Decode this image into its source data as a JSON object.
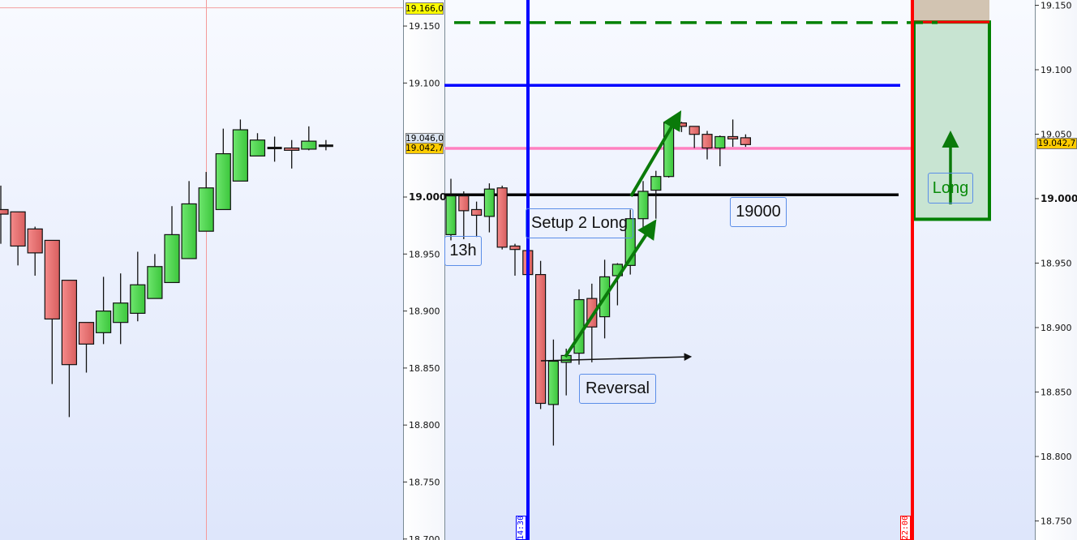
{
  "colors": {
    "bull": "#4cd24c",
    "bear": "#e86a6a",
    "blue_level": "#0000ff",
    "pink_level": "#ff80c0",
    "black_level": "#000000",
    "target_dashed": "#008000",
    "session_line_red": "#ff0000",
    "arrow_green": "#0a7a0a"
  },
  "left_axis": {
    "ticks": [
      "19.150",
      "19.100",
      "19.000",
      "18.950",
      "18.900",
      "18.850",
      "18.800",
      "18.750",
      "18.700"
    ],
    "tick_values": [
      19150,
      19100,
      19000,
      18950,
      18900,
      18850,
      18800,
      18750,
      18700
    ],
    "bold_tick": "19.000",
    "price_tags": [
      {
        "text": "19.166,0",
        "value": 19166.0,
        "color": "#ffff00"
      },
      {
        "text": "19.046,0",
        "value": 19046.0,
        "color": "#dde6f2"
      },
      {
        "text": "19.042,7",
        "value": 19042.7,
        "color": "#ffcc00"
      }
    ]
  },
  "right_axis": {
    "ticks": [
      "19.150",
      "19.100",
      "19.050",
      "19.000",
      "18.950",
      "18.900",
      "18.850",
      "18.800",
      "18.750"
    ],
    "tick_values": [
      19150,
      19100,
      19050,
      19000,
      18950,
      18900,
      18850,
      18800,
      18750
    ],
    "bold_tick": "19.000",
    "price_tag": {
      "text": "19.042,7",
      "value": 19042.7,
      "color": "#ffcc00"
    }
  },
  "levels": [
    {
      "name": "target-dashed-level",
      "price": 19153,
      "color": "#008000",
      "style": "dashed"
    },
    {
      "name": "blue-level",
      "price": 19098,
      "color": "#0000ff",
      "style": "solid"
    },
    {
      "name": "pink-level",
      "price": 19042.7,
      "color": "#ff80c0",
      "style": "solid"
    },
    {
      "name": "round-number-level",
      "price": 19002,
      "color": "#000000",
      "style": "solid"
    },
    {
      "name": "left-high-level",
      "price": 19166,
      "color": "#f4a0a0",
      "style": "solid"
    }
  ],
  "time_markers": [
    {
      "label": "14:30",
      "color": "#0000ff"
    },
    {
      "label": "22:00",
      "color": "#ff0000"
    }
  ],
  "annotations": {
    "h13": "13h",
    "setup": "Setup 2 Long",
    "reversal": "Reversal",
    "level19000": "19000",
    "long": "Long"
  },
  "long_box": {
    "top_price": 19137,
    "bottom_price": 18984
  },
  "left_candles": [
    [
      18989,
      19010,
      18959,
      18985
    ],
    [
      18987,
      18987,
      18940,
      18957
    ],
    [
      18972,
      18974,
      18931,
      18951
    ],
    [
      18962,
      18962,
      18836,
      18893
    ],
    [
      18927,
      18927,
      18807,
      18853
    ],
    [
      18890,
      18890,
      18846,
      18871
    ],
    [
      18881,
      18930,
      18871,
      18900
    ],
    [
      18890,
      18933,
      18871,
      18907
    ],
    [
      18898,
      18952,
      18891,
      18923
    ],
    [
      18911,
      18950,
      18911,
      18939
    ],
    [
      18925,
      18992,
      18925,
      18967
    ],
    [
      18946,
      19014,
      18946,
      18994
    ],
    [
      18970,
      19022,
      18970,
      19008
    ],
    [
      18989,
      19060,
      18989,
      19038
    ],
    [
      19014,
      19068,
      19014,
      19059
    ],
    [
      19036,
      19056,
      19036,
      19050
    ],
    [
      19043,
      19053,
      19031,
      19042
    ],
    [
      19043,
      19050,
      19025,
      19041
    ],
    [
      19042,
      19062,
      19041,
      19049
    ],
    [
      19045,
      19050,
      19041,
      19045
    ]
  ],
  "main_candles": [
    [
      18967,
      19016,
      18962,
      19001
    ],
    [
      19001,
      19005,
      18963,
      18988
    ],
    [
      18989,
      18996,
      18965,
      18984
    ],
    [
      18983,
      19012,
      18969,
      19007
    ],
    [
      19008,
      19010,
      18954,
      18956
    ],
    [
      18957,
      18959,
      18931,
      18954
    ],
    [
      18953,
      18953,
      18932,
      18932
    ],
    [
      18932,
      18944,
      18814,
      18819
    ],
    [
      18818,
      18875,
      18782,
      18856
    ],
    [
      18855,
      18867,
      18826,
      18861
    ],
    [
      18863,
      18919,
      18853,
      18910
    ],
    [
      18911,
      18924,
      18855,
      18886
    ],
    [
      18895,
      18945,
      18876,
      18930
    ],
    [
      18931,
      18942,
      18905,
      18941
    ],
    [
      18940,
      18989,
      18932,
      18981
    ],
    [
      18981,
      19014,
      18969,
      19005
    ],
    [
      19006,
      19023,
      18981,
      19018
    ],
    [
      19018,
      19066,
      19017,
      19065
    ],
    [
      19065,
      19066,
      19057,
      19062
    ],
    [
      19062,
      19062,
      19043,
      19055
    ],
    [
      19055,
      19058,
      19033,
      19043
    ],
    [
      19043,
      19054,
      19027,
      19053
    ],
    [
      19053,
      19068,
      19044,
      19051
    ],
    [
      19052,
      19055,
      19044,
      19046
    ]
  ]
}
